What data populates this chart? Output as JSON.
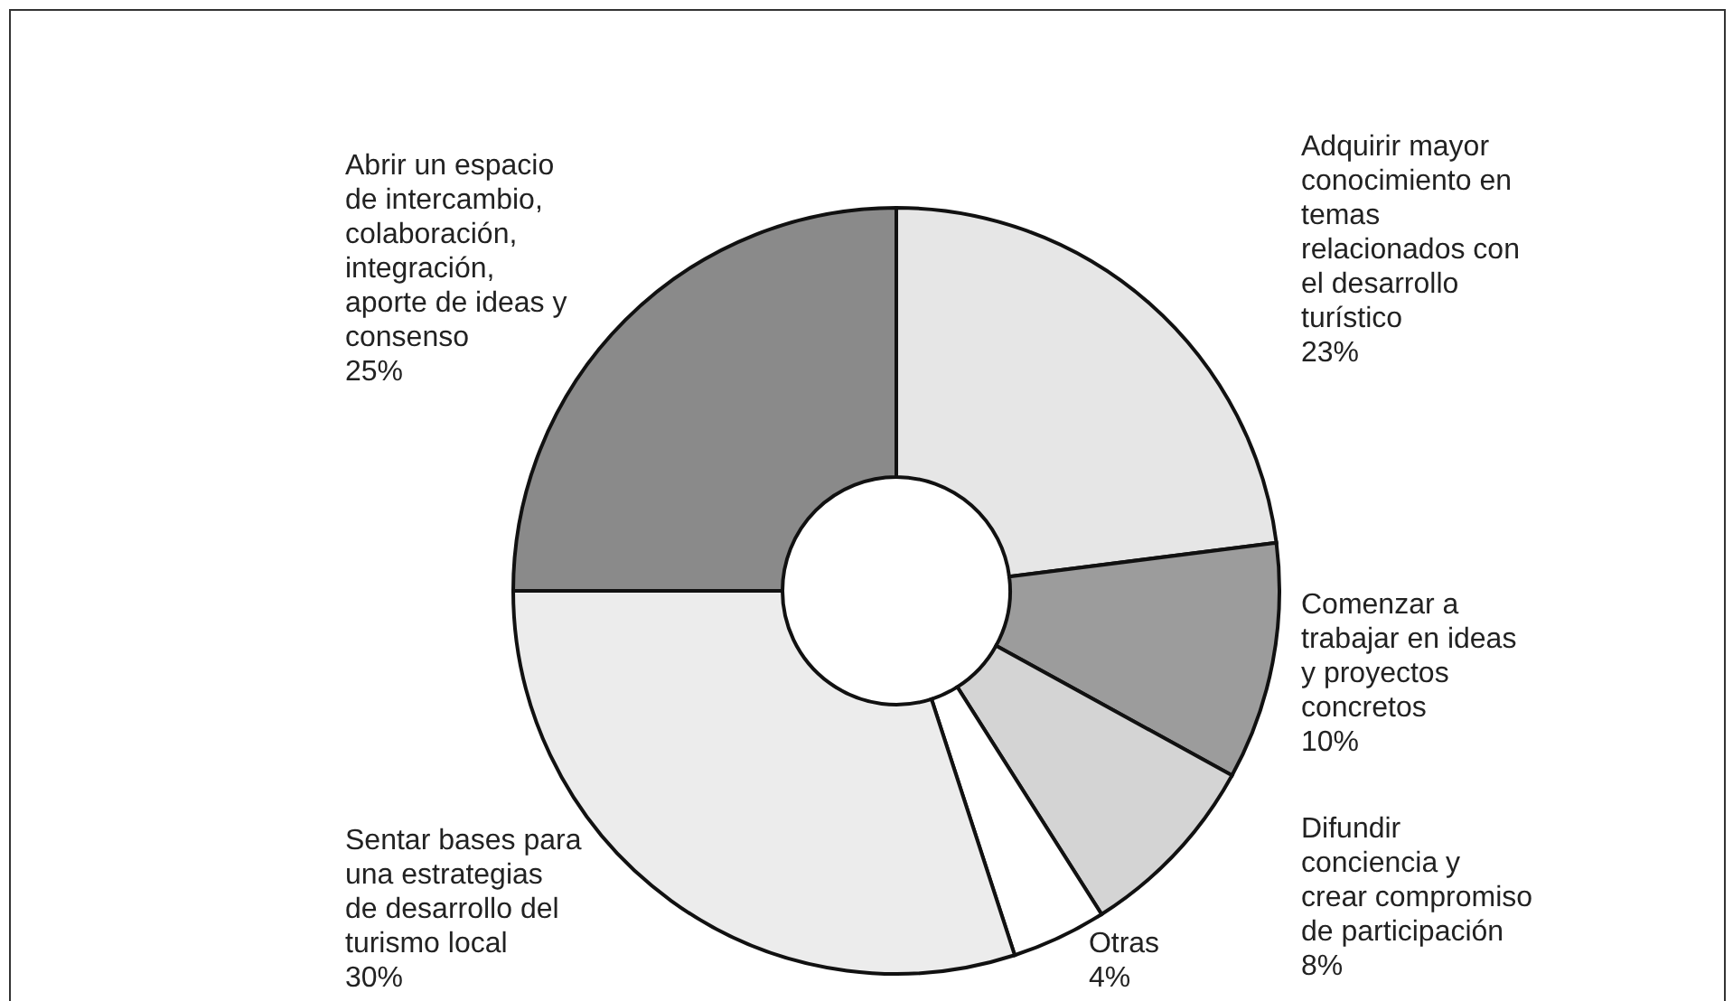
{
  "chart_data": {
    "type": "donut",
    "categories": [
      "Adquirir mayor conocimiento en temas relacionados con el desarrollo turístico",
      "Comenzar a trabajar en ideas y proyectos concretos",
      "Difundir conciencia y crear compromiso de participación",
      "Otras",
      "Sentar bases para una estrategias de desarrollo del turismo local",
      "Abrir un espacio de intercambio, colaboración, integración, aporte de ideas y consenso"
    ],
    "values": [
      23,
      10,
      8,
      4,
      30,
      25
    ],
    "colors": [
      "#e6e6e6",
      "#9c9c9c",
      "#d4d4d4",
      "#ffffff",
      "#ececec",
      "#8a8a8a"
    ],
    "value_labels": [
      "23%",
      "10%",
      "8%",
      "4%",
      "30%",
      "25%"
    ]
  }
}
